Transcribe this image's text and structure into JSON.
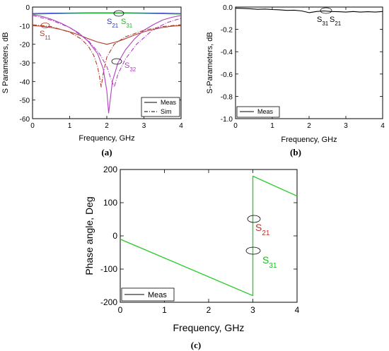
{
  "chart_data": [
    {
      "panel": "(a)",
      "type": "line",
      "xlabel": "Frequency, GHz",
      "ylabel": "S Parameters, dB",
      "xlim": [
        0,
        4
      ],
      "ylim": [
        -60,
        0
      ],
      "xticks": [
        "0",
        "1",
        "2",
        "3",
        "4"
      ],
      "yticks": [
        "0",
        "-10",
        "-20",
        "-30",
        "-40",
        "-50",
        "-60"
      ],
      "legend": {
        "placement": "bottom-right",
        "entries": [
          "Meas",
          "Sim"
        ]
      },
      "annotations": [
        {
          "base": "S",
          "sub": "21",
          "color": "#2a36c8"
        },
        {
          "base": "S",
          "sub": "31",
          "color": "#22b822"
        },
        {
          "base": "S",
          "sub": "11",
          "color": "#b03a2a"
        },
        {
          "base": "S",
          "sub": "32",
          "color": "#b040c0"
        }
      ],
      "series": [
        {
          "style": "meas",
          "color": "#2a36c8",
          "x": [
            0,
            0.5,
            1,
            1.5,
            2,
            2.5,
            3,
            3.5,
            4
          ],
          "y": [
            -3.5,
            -3.3,
            -3.2,
            -3.1,
            -3.1,
            -3.1,
            -3.2,
            -3.3,
            -3.5
          ]
        },
        {
          "style": "meas",
          "color": "#22b822",
          "x": [
            0,
            0.5,
            1,
            1.5,
            2,
            2.5,
            3,
            3.5,
            4
          ],
          "y": [
            -3.8,
            -3.6,
            -3.4,
            -3.3,
            -3.3,
            -3.3,
            -3.4,
            -3.6,
            -3.8
          ]
        },
        {
          "style": "meas",
          "color": "#b03a2a",
          "x": [
            0,
            0.25,
            0.5,
            0.75,
            1,
            1.25,
            1.5,
            1.75,
            2,
            2.25,
            2.5,
            2.75,
            3,
            3.25,
            3.5,
            3.75,
            4
          ],
          "y": [
            -10,
            -10.3,
            -11,
            -12,
            -13.3,
            -15,
            -17,
            -18.8,
            -20,
            -18.8,
            -17,
            -15,
            -13.3,
            -12,
            -11,
            -10.3,
            -10
          ]
        },
        {
          "style": "sim",
          "color": "#b03a2a",
          "x": [
            0,
            0.5,
            1,
            1.3,
            1.5,
            1.65,
            1.75,
            1.8,
            1.85,
            1.9,
            2,
            2.2,
            2.5,
            3,
            3.5,
            4
          ],
          "y": [
            -9.5,
            -10.5,
            -13.5,
            -17,
            -21,
            -26,
            -32,
            -37,
            -43,
            -36,
            -27,
            -20,
            -16,
            -12.5,
            -10.5,
            -9.5
          ]
        },
        {
          "style": "meas",
          "color": "#b040c0",
          "x": [
            0,
            0.25,
            0.5,
            0.75,
            1,
            1.25,
            1.5,
            1.75,
            1.9,
            2,
            2.05,
            2.15,
            2.3,
            2.5,
            2.75,
            3,
            3.25,
            3.5,
            3.75,
            4
          ],
          "y": [
            -4,
            -5,
            -6.5,
            -8.5,
            -11,
            -14,
            -18.5,
            -25,
            -33,
            -45,
            -57,
            -40,
            -30,
            -23,
            -17,
            -12.5,
            -9.5,
            -7,
            -5.5,
            -4.5
          ]
        },
        {
          "style": "sim",
          "color": "#b040c0",
          "x": [
            0,
            0.5,
            1,
            1.5,
            1.8,
            2,
            2.1,
            2.2,
            2.3,
            2.5,
            2.8,
            3.2,
            3.6,
            4
          ],
          "y": [
            -4.5,
            -7,
            -11,
            -18,
            -25,
            -32,
            -38,
            -43,
            -36,
            -28,
            -20,
            -13,
            -8.5,
            -6
          ]
        }
      ]
    },
    {
      "panel": "(b)",
      "type": "line",
      "xlabel": "Frequency, GHz",
      "ylabel": "S-Parameters, dB",
      "xlim": [
        0,
        4
      ],
      "ylim": [
        -1.0,
        0.0
      ],
      "xticks": [
        "0",
        "1",
        "2",
        "3",
        "4"
      ],
      "yticks": [
        "0.0",
        "-0.2",
        "-0.4",
        "-0.6",
        "-0.8",
        "-1.0"
      ],
      "legend": {
        "placement": "bottom-left",
        "entries": [
          "Meas"
        ]
      },
      "annotations": [
        {
          "base": "S",
          "sub": "31",
          "color": "#000000"
        },
        {
          "base": "S",
          "sub": "21",
          "color": "#000000"
        }
      ],
      "series": [
        {
          "style": "meas",
          "color": "#000000",
          "x": [
            0,
            0.2,
            0.4,
            0.6,
            0.8,
            1.0,
            1.2,
            1.4,
            1.6,
            1.8,
            2.0,
            2.2,
            2.4,
            2.6,
            2.8,
            3.0,
            3.2,
            3.4,
            3.6,
            3.8,
            4.0
          ],
          "y": [
            -0.01,
            -0.012,
            -0.015,
            -0.02,
            -0.018,
            -0.022,
            -0.025,
            -0.03,
            -0.028,
            -0.035,
            -0.05,
            -0.04,
            -0.035,
            -0.04,
            -0.042,
            -0.045,
            -0.04,
            -0.045,
            -0.042,
            -0.045,
            -0.04
          ]
        }
      ]
    },
    {
      "panel": "(c)",
      "type": "line",
      "xlabel": "Frequency, GHz",
      "ylabel": "Phase angle,  Deg",
      "xlim": [
        0,
        4
      ],
      "ylim": [
        -200,
        200
      ],
      "xticks": [
        "0",
        "1",
        "2",
        "3",
        "4"
      ],
      "yticks": [
        "200",
        "100",
        "0",
        "-100",
        "-200"
      ],
      "legend": {
        "placement": "bottom-left",
        "entries": [
          "Meas"
        ]
      },
      "annotations": [
        {
          "base": "S",
          "sub": "21",
          "color": "#b03a2a"
        },
        {
          "base": "S",
          "sub": "31",
          "color": "#22b822"
        }
      ],
      "series": [
        {
          "style": "meas",
          "color": "#33cc33",
          "x": [
            0,
            3,
            3,
            4
          ],
          "y": [
            -10,
            -180,
            180,
            120
          ]
        }
      ]
    }
  ]
}
